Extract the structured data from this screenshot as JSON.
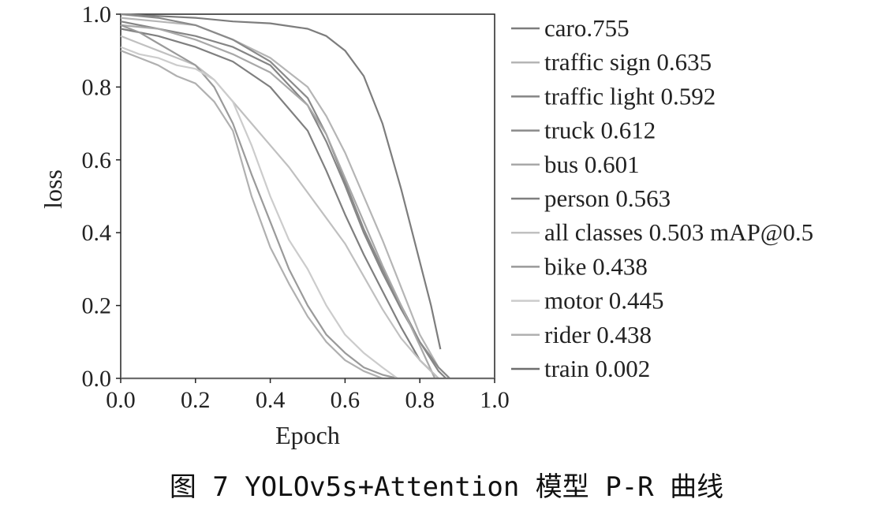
{
  "caption": "图 7  YOLOv5s+Attention 模型 P-R 曲线",
  "chart_data": {
    "type": "line",
    "xlabel": "Epoch",
    "ylabel": "loss",
    "xlim": [
      0,
      1
    ],
    "ylim": [
      0,
      1
    ],
    "x_ticks": [
      "0.0",
      "0.2",
      "0.4",
      "0.6",
      "0.8",
      "1.0"
    ],
    "y_ticks": [
      "0.0",
      "0.2",
      "0.4",
      "0.6",
      "0.8",
      "1.0"
    ],
    "grid": false,
    "legend_position": "right",
    "series": [
      {
        "name": "caro.755",
        "color": "#7d7d7d",
        "x": [
          0.0,
          0.1,
          0.2,
          0.3,
          0.4,
          0.5,
          0.55,
          0.6,
          0.65,
          0.7,
          0.75,
          0.8,
          0.83,
          0.855
        ],
        "y": [
          1.0,
          0.995,
          0.99,
          0.98,
          0.975,
          0.96,
          0.94,
          0.9,
          0.83,
          0.7,
          0.52,
          0.32,
          0.2,
          0.08
        ]
      },
      {
        "name": "traffic sign 0.635",
        "color": "#b5b5b5",
        "x": [
          0.0,
          0.1,
          0.2,
          0.3,
          0.4,
          0.5,
          0.55,
          0.6,
          0.65,
          0.7,
          0.75,
          0.8,
          0.85,
          0.88
        ],
        "y": [
          0.99,
          0.98,
          0.97,
          0.93,
          0.88,
          0.8,
          0.72,
          0.62,
          0.5,
          0.38,
          0.25,
          0.12,
          0.03,
          0.0
        ]
      },
      {
        "name": "traffic light 0.592",
        "color": "#858585",
        "x": [
          0.0,
          0.1,
          0.2,
          0.3,
          0.4,
          0.5,
          0.55,
          0.6,
          0.65,
          0.7,
          0.75,
          0.8,
          0.85,
          0.87
        ],
        "y": [
          0.98,
          0.96,
          0.94,
          0.91,
          0.86,
          0.75,
          0.65,
          0.53,
          0.4,
          0.29,
          0.19,
          0.1,
          0.02,
          0.0
        ]
      },
      {
        "name": "truck 0.612",
        "color": "#8a8a8a",
        "x": [
          0.0,
          0.1,
          0.2,
          0.3,
          0.4,
          0.5,
          0.55,
          0.6,
          0.65,
          0.7,
          0.75,
          0.8,
          0.85,
          0.88
        ],
        "y": [
          1.0,
          0.99,
          0.97,
          0.93,
          0.87,
          0.77,
          0.67,
          0.54,
          0.41,
          0.3,
          0.2,
          0.1,
          0.03,
          0.0
        ]
      },
      {
        "name": "bus 0.601",
        "color": "#a8a8a8",
        "x": [
          0.0,
          0.1,
          0.2,
          0.3,
          0.4,
          0.5,
          0.55,
          0.6,
          0.65,
          0.7,
          0.75,
          0.8,
          0.84
        ],
        "y": [
          0.97,
          0.96,
          0.93,
          0.89,
          0.84,
          0.75,
          0.67,
          0.55,
          0.43,
          0.31,
          0.2,
          0.09,
          0.0
        ]
      },
      {
        "name": "person 0.563",
        "color": "#7f7f7f",
        "x": [
          0.0,
          0.1,
          0.2,
          0.3,
          0.4,
          0.5,
          0.55,
          0.6,
          0.65,
          0.7,
          0.75,
          0.8,
          0.85
        ],
        "y": [
          0.96,
          0.94,
          0.91,
          0.87,
          0.8,
          0.68,
          0.57,
          0.45,
          0.34,
          0.24,
          0.14,
          0.05,
          0.0
        ]
      },
      {
        "name": "all classes 0.503 mAP@0.5",
        "color": "#c0c0c0",
        "x": [
          0.0,
          0.05,
          0.1,
          0.15,
          0.2,
          0.25,
          0.3,
          0.35,
          0.4,
          0.45,
          0.5,
          0.55,
          0.6,
          0.65,
          0.7,
          0.75,
          0.8,
          0.85
        ],
        "y": [
          0.94,
          0.92,
          0.9,
          0.88,
          0.86,
          0.82,
          0.76,
          0.7,
          0.64,
          0.58,
          0.51,
          0.44,
          0.37,
          0.28,
          0.19,
          0.11,
          0.05,
          0.0
        ]
      },
      {
        "name": "bike 0.438",
        "color": "#9a9a9a",
        "x": [
          0.0,
          0.05,
          0.1,
          0.15,
          0.2,
          0.25,
          0.3,
          0.35,
          0.4,
          0.45,
          0.5,
          0.55,
          0.6,
          0.65,
          0.7,
          0.74
        ],
        "y": [
          0.97,
          0.95,
          0.92,
          0.89,
          0.86,
          0.8,
          0.7,
          0.56,
          0.43,
          0.3,
          0.2,
          0.12,
          0.07,
          0.03,
          0.01,
          0.0
        ]
      },
      {
        "name": "motor 0.445",
        "color": "#cccccc",
        "x": [
          0.0,
          0.05,
          0.1,
          0.15,
          0.2,
          0.25,
          0.3,
          0.35,
          0.4,
          0.45,
          0.5,
          0.55,
          0.6,
          0.65,
          0.7,
          0.74
        ],
        "y": [
          0.91,
          0.89,
          0.88,
          0.86,
          0.85,
          0.82,
          0.76,
          0.64,
          0.5,
          0.38,
          0.3,
          0.2,
          0.12,
          0.07,
          0.03,
          0.0
        ]
      },
      {
        "name": "rider 0.438",
        "color": "#b0b0b0",
        "x": [
          0.0,
          0.05,
          0.1,
          0.15,
          0.2,
          0.25,
          0.3,
          0.35,
          0.4,
          0.45,
          0.5,
          0.55,
          0.6,
          0.65,
          0.7
        ],
        "y": [
          0.9,
          0.88,
          0.86,
          0.83,
          0.81,
          0.76,
          0.68,
          0.5,
          0.36,
          0.26,
          0.17,
          0.1,
          0.05,
          0.02,
          0.0
        ]
      },
      {
        "name": "train 0.002",
        "color": "#6e6e6e",
        "x": [
          0.0,
          0.2,
          0.4,
          0.6,
          0.8,
          1.0
        ],
        "y": [
          0.0,
          0.0,
          0.0,
          0.0,
          0.0,
          0.0
        ]
      }
    ]
  }
}
